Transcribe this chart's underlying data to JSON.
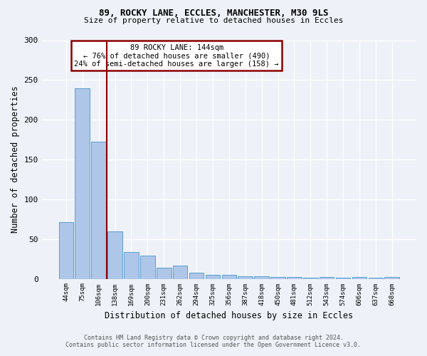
{
  "title1": "89, ROCKY LANE, ECCLES, MANCHESTER, M30 9LS",
  "title2": "Size of property relative to detached houses in Eccles",
  "xlabel": "Distribution of detached houses by size in Eccles",
  "ylabel": "Number of detached properties",
  "footer1": "Contains HM Land Registry data © Crown copyright and database right 2024.",
  "footer2": "Contains public sector information licensed under the Open Government Licence v3.0.",
  "annotation_line1": "89 ROCKY LANE: 144sqm",
  "annotation_line2": "← 76% of detached houses are smaller (490)",
  "annotation_line3": "24% of semi-detached houses are larger (158) →",
  "bar_values": [
    71,
    240,
    172,
    60,
    34,
    29,
    14,
    17,
    8,
    5,
    5,
    3,
    3,
    2,
    2,
    1,
    2,
    1,
    2,
    1,
    2
  ],
  "bar_labels": [
    "44sqm",
    "75sqm",
    "106sqm",
    "138sqm",
    "169sqm",
    "200sqm",
    "231sqm",
    "262sqm",
    "294sqm",
    "325sqm",
    "356sqm",
    "387sqm",
    "418sqm",
    "450sqm",
    "481sqm",
    "512sqm",
    "543sqm",
    "574sqm",
    "606sqm",
    "637sqm",
    "668sqm"
  ],
  "bar_color": "#aec6e8",
  "bar_edge_color": "#5a9fd4",
  "vline_color": "#8b0000",
  "ylim": [
    0,
    300
  ],
  "yticks": [
    0,
    50,
    100,
    150,
    200,
    250,
    300
  ],
  "annotation_box_color": "white",
  "annotation_box_edge_color": "#8b0000",
  "bg_color": "#eef2f8"
}
